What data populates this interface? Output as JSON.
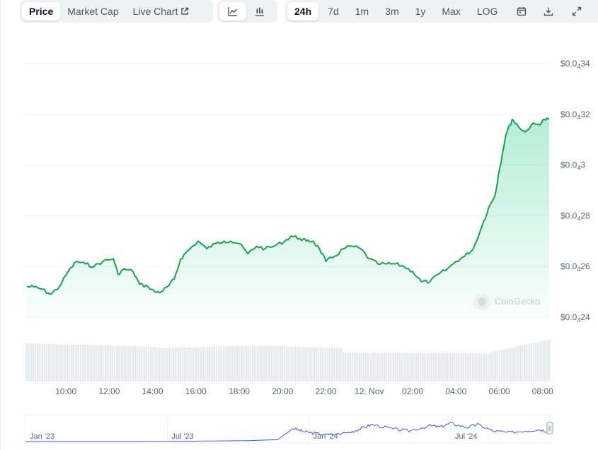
{
  "toolbar": {
    "tabs": [
      {
        "label": "Price",
        "active": true
      },
      {
        "label": "Market Cap",
        "active": false
      },
      {
        "label": "Live Chart",
        "active": false
      }
    ],
    "chart_types": [
      {
        "icon": "line-chart-icon",
        "active": true
      },
      {
        "icon": "candlestick-chart-icon",
        "active": false
      }
    ],
    "ranges": [
      {
        "label": "24h",
        "active": true
      },
      {
        "label": "7d",
        "active": false
      },
      {
        "label": "1m",
        "active": false
      },
      {
        "label": "3m",
        "active": false
      },
      {
        "label": "1y",
        "active": false
      },
      {
        "label": "Max",
        "active": false
      },
      {
        "label": "LOG",
        "active": false
      }
    ],
    "icons": [
      "calendar-icon",
      "download-icon",
      "expand-icon"
    ]
  },
  "watermark": "CoinGecko",
  "colors": {
    "line": "#16a34a",
    "fill_top": "#16c784",
    "volume": "#e6e8ec",
    "navigator": "#3b5bd9",
    "grid": "#eff2f5"
  },
  "chart_data": {
    "type": "area",
    "ytick_labels": [
      {
        "main": "$0.0",
        "sub": "4",
        "rest": "34",
        "value": 3.4e-05
      },
      {
        "main": "$0.0",
        "sub": "4",
        "rest": "32",
        "value": 3.2e-05
      },
      {
        "main": "$0.0",
        "sub": "4",
        "rest": "3",
        "value": 3e-05
      },
      {
        "main": "$0.0",
        "sub": "4",
        "rest": "28",
        "value": 2.8e-05
      },
      {
        "main": "$0.0",
        "sub": "4",
        "rest": "26",
        "value": 2.6e-05
      },
      {
        "main": "$0.0",
        "sub": "4",
        "rest": "24",
        "value": 2.4e-05
      }
    ],
    "ylim": [
      2.4e-05,
      3.4e-05
    ],
    "xlim": [
      8.2,
      32.3
    ],
    "xtick_labels": [
      {
        "label": "10:00",
        "t": 10
      },
      {
        "label": "12:00",
        "t": 12
      },
      {
        "label": "14:00",
        "t": 14
      },
      {
        "label": "16:00",
        "t": 16
      },
      {
        "label": "18:00",
        "t": 18
      },
      {
        "label": "20:00",
        "t": 20
      },
      {
        "label": "22:00",
        "t": 22
      },
      {
        "label": "12. Nov",
        "t": 24
      },
      {
        "label": "02:00",
        "t": 26
      },
      {
        "label": "04:00",
        "t": 28
      },
      {
        "label": "06:00",
        "t": 30
      },
      {
        "label": "08:00",
        "t": 32
      }
    ],
    "price_points": [
      [
        8.2,
        2.52e-05
      ],
      [
        8.5,
        2.52e-05
      ],
      [
        8.9,
        2.51e-05
      ],
      [
        9.3,
        2.49e-05
      ],
      [
        9.7,
        2.52e-05
      ],
      [
        10.1,
        2.58e-05
      ],
      [
        10.5,
        2.62e-05
      ],
      [
        10.9,
        2.61e-05
      ],
      [
        11.3,
        2.6e-05
      ],
      [
        11.7,
        2.62e-05
      ],
      [
        12.2,
        2.63e-05
      ],
      [
        12.4,
        2.57e-05
      ],
      [
        12.7,
        2.59e-05
      ],
      [
        13.1,
        2.58e-05
      ],
      [
        13.4,
        2.53e-05
      ],
      [
        13.8,
        2.52e-05
      ],
      [
        14.1,
        2.5e-05
      ],
      [
        14.4,
        2.5e-05
      ],
      [
        14.7,
        2.52e-05
      ],
      [
        15.0,
        2.55e-05
      ],
      [
        15.3,
        2.63e-05
      ],
      [
        15.6,
        2.66e-05
      ],
      [
        16.1,
        2.7e-05
      ],
      [
        16.5,
        2.67e-05
      ],
      [
        16.9,
        2.69e-05
      ],
      [
        17.3,
        2.7e-05
      ],
      [
        17.6,
        2.7e-05
      ],
      [
        18.0,
        2.69e-05
      ],
      [
        18.4,
        2.65e-05
      ],
      [
        18.8,
        2.68e-05
      ],
      [
        19.2,
        2.67e-05
      ],
      [
        19.6,
        2.68e-05
      ],
      [
        20.1,
        2.7e-05
      ],
      [
        20.4,
        2.72e-05
      ],
      [
        20.8,
        2.71e-05
      ],
      [
        21.1,
        2.7e-05
      ],
      [
        21.4,
        2.7e-05
      ],
      [
        21.7,
        2.67e-05
      ],
      [
        22.0,
        2.62e-05
      ],
      [
        22.4,
        2.64e-05
      ],
      [
        22.8,
        2.67e-05
      ],
      [
        23.2,
        2.68e-05
      ],
      [
        23.6,
        2.67e-05
      ],
      [
        24.0,
        2.63e-05
      ],
      [
        24.4,
        2.61e-05
      ],
      [
        24.8,
        2.61e-05
      ],
      [
        25.2,
        2.61e-05
      ],
      [
        25.6,
        2.6e-05
      ],
      [
        26.0,
        2.58e-05
      ],
      [
        26.4,
        2.54e-05
      ],
      [
        26.8,
        2.54e-05
      ],
      [
        27.2,
        2.57e-05
      ],
      [
        27.6,
        2.59e-05
      ],
      [
        28.0,
        2.62e-05
      ],
      [
        28.4,
        2.64e-05
      ],
      [
        28.8,
        2.67e-05
      ],
      [
        29.2,
        2.76e-05
      ],
      [
        29.5,
        2.83e-05
      ],
      [
        29.8,
        2.88e-05
      ],
      [
        30.0,
        2.98e-05
      ],
      [
        30.3,
        3.12e-05
      ],
      [
        30.6,
        3.18e-05
      ],
      [
        30.9,
        3.15e-05
      ],
      [
        31.2,
        3.13e-05
      ],
      [
        31.5,
        3.16e-05
      ],
      [
        31.8,
        3.16e-05
      ],
      [
        32.1,
        3.18e-05
      ],
      [
        32.3,
        3.18e-05
      ]
    ],
    "navigator": {
      "xtick_labels": [
        {
          "label": "Jan '23",
          "u": 0.0
        },
        {
          "label": "Jul '23",
          "u": 0.27
        },
        {
          "label": "Jan '24",
          "u": 0.54
        },
        {
          "label": "Jul '24",
          "u": 0.81
        }
      ],
      "points": [
        [
          0.0,
          0.03
        ],
        [
          0.1,
          0.03
        ],
        [
          0.2,
          0.03
        ],
        [
          0.3,
          0.04
        ],
        [
          0.42,
          0.06
        ],
        [
          0.48,
          0.1
        ],
        [
          0.51,
          0.55
        ],
        [
          0.53,
          0.42
        ],
        [
          0.55,
          0.35
        ],
        [
          0.58,
          0.28
        ],
        [
          0.62,
          0.4
        ],
        [
          0.64,
          0.55
        ],
        [
          0.66,
          0.7
        ],
        [
          0.7,
          0.52
        ],
        [
          0.73,
          0.45
        ],
        [
          0.77,
          0.65
        ],
        [
          0.79,
          0.6
        ],
        [
          0.81,
          0.75
        ],
        [
          0.84,
          0.58
        ],
        [
          0.86,
          0.7
        ],
        [
          0.89,
          0.45
        ],
        [
          0.92,
          0.38
        ],
        [
          0.95,
          0.45
        ],
        [
          0.98,
          0.5
        ],
        [
          1.0,
          0.4
        ]
      ]
    }
  }
}
